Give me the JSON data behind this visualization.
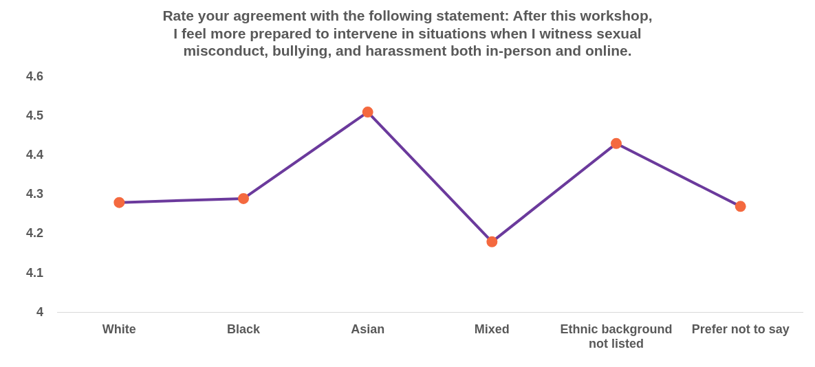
{
  "chart_data": {
    "type": "line",
    "title": "Rate your agreement with the following statement: After this workshop, I feel more prepared to intervene in situations when I witness sexual misconduct, bullying, and harassment both in-person and online.",
    "categories": [
      "White",
      "Black",
      "Asian",
      "Mixed",
      "Ethnic background not listed",
      "Prefer not to say"
    ],
    "series": [
      {
        "color": "#6b3a9c",
        "colors": [
          "#f4693f",
          "#f4693f",
          "#f4693f",
          "#f4693f",
          "#f4693f",
          "#f4693f"
        ],
        "values": [
          4.28,
          4.29,
          4.51,
          4.18,
          4.43,
          4.27
        ]
      }
    ],
    "ylim": [
      4,
      4.6
    ],
    "yticks": [
      4,
      4.1,
      4.2,
      4.3,
      4.4,
      4.5,
      4.6
    ],
    "grid": false,
    "legend": false,
    "marker": "circle",
    "line_style": "solid"
  }
}
